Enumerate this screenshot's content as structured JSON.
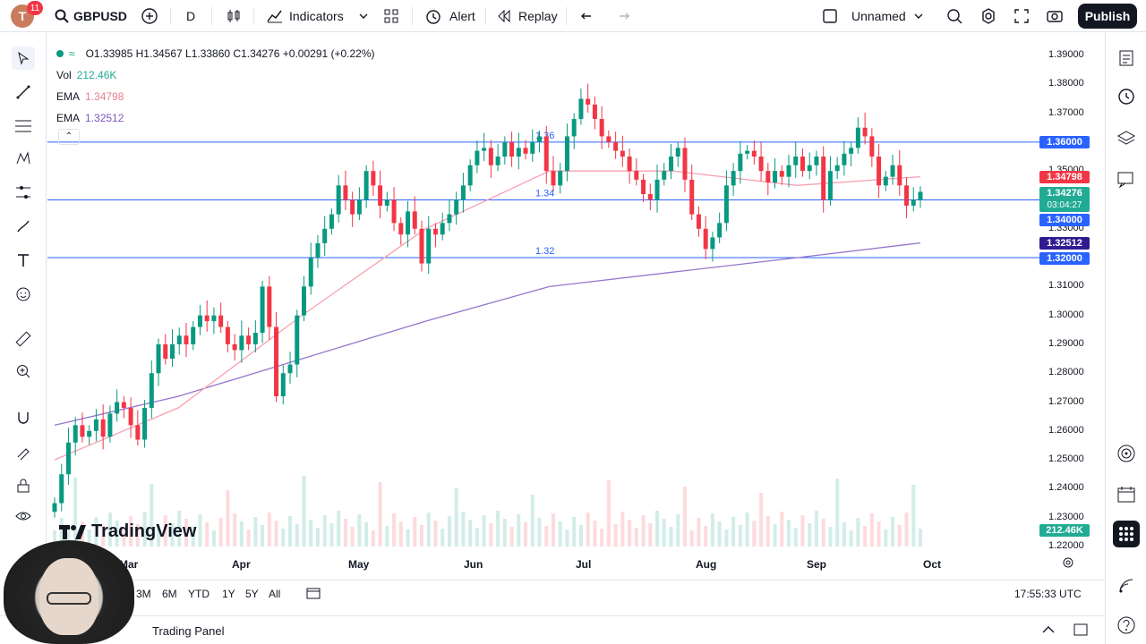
{
  "topbar": {
    "avatar_letter": "T",
    "notification_count": "11",
    "symbol": "GBPUSD",
    "interval": "D",
    "indicators_label": "Indicators",
    "alert_label": "Alert",
    "replay_label": "Replay",
    "layout_name": "Unnamed",
    "publish_label": "Publish"
  },
  "legend": {
    "ohlc": "O1.33985 H1.34567 L1.33860 C1.34276 +0.00291 (+0.22%)",
    "vol_label": "Vol",
    "vol_value": "212.46K",
    "ema1_label": "EMA",
    "ema1_value": "1.34798",
    "ema2_label": "EMA",
    "ema2_value": "1.32512"
  },
  "hline_labels": [
    "1.36",
    "1.34",
    "1.32"
  ],
  "price_axis": [
    "1.39000",
    "1.38000",
    "1.37000",
    "1.36000",
    "1.35000",
    "1.34000",
    "1.33000",
    "1.32000",
    "1.31000",
    "1.30000",
    "1.29000",
    "1.28000",
    "1.27000",
    "1.26000",
    "1.25000",
    "1.24000",
    "1.23000",
    "1.22000"
  ],
  "price_tags": {
    "hline_top": "1.36000",
    "ema_fast": "1.34798",
    "last_price": "1.34276",
    "countdown": "03:04:27",
    "hline_mid": "1.34000",
    "ema_slow": "1.32512",
    "hline_low": "1.32000",
    "volume": "212.46K"
  },
  "time_axis": [
    "Mar",
    "Apr",
    "May",
    "Jun",
    "Jul",
    "Aug",
    "Sep",
    "Oct"
  ],
  "ranges": [
    "3M",
    "6M",
    "YTD",
    "1Y",
    "5Y",
    "All"
  ],
  "clock": "17:55:33 UTC",
  "panel_label": "Trading Panel",
  "logo_text": "TradingView",
  "colors": {
    "up": "#089981",
    "down": "#f23645",
    "ema_fast": "#f7a1b0",
    "ema_slow": "#9575cd",
    "hline": "#2962ff",
    "accent_dark": "#131722"
  },
  "chart_data": {
    "type": "candlestick",
    "symbol": "GBPUSD",
    "interval": "D",
    "x": [
      "Mar",
      "Apr",
      "May",
      "Jun",
      "Jul",
      "Aug",
      "Sep",
      "Oct"
    ],
    "ylim": [
      1.22,
      1.39
    ],
    "horizontal_lines": [
      1.36,
      1.34,
      1.32
    ],
    "series": [
      {
        "name": "EMA",
        "values_at_months": [
          1.25,
          1.268,
          1.3,
          1.33,
          1.35,
          1.35,
          1.345,
          1.348
        ]
      },
      {
        "name": "EMA",
        "values_at_months": [
          1.262,
          1.272,
          1.285,
          1.298,
          1.31,
          1.315,
          1.32,
          1.3251
        ]
      }
    ],
    "closes": [
      1.235,
      1.245,
      1.256,
      1.262,
      1.258,
      1.26,
      1.264,
      1.258,
      1.266,
      1.27,
      1.268,
      1.262,
      1.257,
      1.268,
      1.28,
      1.29,
      1.285,
      1.29,
      1.293,
      1.29,
      1.296,
      1.3,
      1.298,
      1.3,
      1.296,
      1.29,
      1.288,
      1.293,
      1.29,
      1.294,
      1.31,
      1.296,
      1.272,
      1.28,
      1.283,
      1.3,
      1.31,
      1.32,
      1.325,
      1.33,
      1.335,
      1.345,
      1.34,
      1.335,
      1.34,
      1.35,
      1.345,
      1.338,
      1.34,
      1.332,
      1.328,
      1.336,
      1.33,
      1.318,
      1.33,
      1.328,
      1.332,
      1.335,
      1.34,
      1.345,
      1.352,
      1.357,
      1.358,
      1.352,
      1.355,
      1.36,
      1.355,
      1.358,
      1.356,
      1.36,
      1.362,
      1.35,
      1.345,
      1.35,
      1.362,
      1.368,
      1.375,
      1.373,
      1.368,
      1.362,
      1.36,
      1.357,
      1.355,
      1.35,
      1.347,
      1.342,
      1.34,
      1.347,
      1.35,
      1.355,
      1.358,
      1.347,
      1.335,
      1.33,
      1.323,
      1.327,
      1.332,
      1.345,
      1.35,
      1.356,
      1.357,
      1.355,
      1.35,
      1.346,
      1.35,
      1.348,
      1.352,
      1.355,
      1.35,
      1.352,
      1.355,
      1.34,
      1.35,
      1.352,
      1.356,
      1.358,
      1.365,
      1.362,
      1.355,
      1.345,
      1.348,
      1.352,
      1.345,
      1.338,
      1.34,
      1.3428
    ],
    "volume_last": "212.46K"
  }
}
